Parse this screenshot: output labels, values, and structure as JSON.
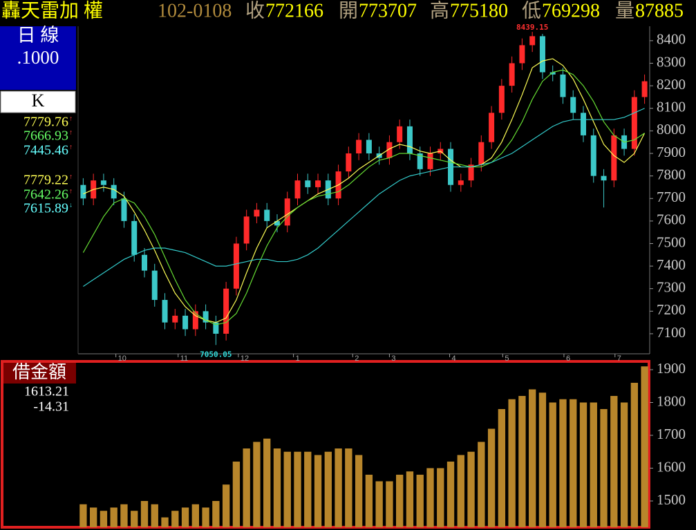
{
  "header": {
    "title": "轟天雷加 權",
    "code": "102-0108",
    "quotes": [
      {
        "label": "收",
        "value": 772166
      },
      {
        "label": "開",
        "value": 773707
      },
      {
        "label": "高",
        "value": 775180
      },
      {
        "label": "低",
        "value": 769298
      },
      {
        "label": "量",
        "value": 87885
      }
    ]
  },
  "sidebar": {
    "period": "日 線",
    "unit": ".1000",
    "indicator": "K",
    "readings": [
      {
        "value": 7779.76,
        "arrow": "↑",
        "color": "#ffff55"
      },
      {
        "value": 7666.93,
        "arrow": "↑",
        "color": "#66ff66"
      },
      {
        "value": 7445.46,
        "arrow": "↑",
        "color": "#66ffff"
      },
      {
        "value": 7779.22,
        "arrow": "↑",
        "color": "#ffff55"
      },
      {
        "value": 7642.26,
        "arrow": "↑",
        "color": "#66ff66"
      },
      {
        "value": 7615.89,
        "arrow": "↓",
        "color": "#66ffff"
      }
    ]
  },
  "chart_data": [
    {
      "type": "candlestick",
      "up_color": "#ff2a2a",
      "down_color": "#3cc8c8",
      "open": [
        7760,
        7700,
        7780,
        7760,
        7700,
        7600,
        7450,
        7380,
        7250,
        7150,
        7180,
        7120,
        7200,
        7150,
        7100,
        7300,
        7500,
        7620,
        7650,
        7600,
        7580,
        7700,
        7780,
        7750,
        7780,
        7700,
        7820,
        7900,
        7960,
        7900,
        7880,
        7950,
        8020,
        7900,
        7830,
        7900,
        7920,
        7760,
        7780,
        7850,
        7950,
        8080,
        8200,
        8300,
        8380,
        8420,
        8260,
        8250,
        8150,
        8080,
        7980,
        7800,
        7780,
        7980,
        7920,
        8150
      ],
      "high": [
        7790,
        7810,
        7810,
        7790,
        7730,
        7630,
        7480,
        7410,
        7280,
        7210,
        7210,
        7230,
        7230,
        7180,
        7330,
        7530,
        7650,
        7680,
        7680,
        7630,
        7730,
        7810,
        7810,
        7810,
        7810,
        7850,
        7930,
        7990,
        7990,
        7930,
        7980,
        8050,
        8050,
        7930,
        7930,
        7950,
        7950,
        7810,
        7880,
        7980,
        8110,
        8230,
        8330,
        8410,
        8439.15,
        8430,
        8290,
        8280,
        8180,
        8110,
        8010,
        7830,
        8010,
        8010,
        8180,
        8250
      ],
      "low": [
        7670,
        7670,
        7730,
        7670,
        7570,
        7420,
        7350,
        7220,
        7120,
        7120,
        7090,
        7090,
        7120,
        7050.05,
        7070,
        7270,
        7470,
        7590,
        7570,
        7550,
        7550,
        7670,
        7720,
        7720,
        7670,
        7670,
        7790,
        7870,
        7870,
        7850,
        7850,
        7920,
        7870,
        7800,
        7800,
        7870,
        7730,
        7730,
        7750,
        7820,
        7920,
        8050,
        8170,
        8270,
        8350,
        8230,
        8220,
        8120,
        8050,
        7950,
        7770,
        7660,
        7750,
        7890,
        7890,
        8120
      ],
      "close": [
        7700,
        7780,
        7760,
        7700,
        7600,
        7450,
        7380,
        7250,
        7150,
        7180,
        7120,
        7200,
        7150,
        7100,
        7300,
        7500,
        7620,
        7650,
        7600,
        7580,
        7700,
        7780,
        7750,
        7780,
        7700,
        7820,
        7900,
        7960,
        7900,
        7880,
        7950,
        8020,
        7900,
        7830,
        7900,
        7920,
        7760,
        7780,
        7850,
        7950,
        8080,
        8200,
        8300,
        8380,
        8420,
        8260,
        8250,
        8150,
        8080,
        7980,
        7800,
        7780,
        7980,
        7920,
        8150,
        8220
      ],
      "series": [
        {
          "color": "#ffff55",
          "values": [
            7720,
            7740,
            7750,
            7740,
            7710,
            7640,
            7560,
            7470,
            7370,
            7280,
            7220,
            7180,
            7160,
            7150,
            7170,
            7250,
            7370,
            7480,
            7570,
            7600,
            7630,
            7660,
            7690,
            7720,
            7740,
            7760,
            7790,
            7830,
            7860,
            7890,
            7920,
            7940,
            7930,
            7910,
            7900,
            7910,
            7870,
            7840,
            7840,
            7850,
            7880,
            7950,
            8050,
            8160,
            8280,
            8310,
            8320,
            8290,
            8230,
            8140,
            8040,
            7940,
            7890,
            7860,
            7900,
            7990
          ]
        },
        {
          "color": "#66dd33",
          "values": [
            7460,
            7540,
            7620,
            7680,
            7700,
            7680,
            7620,
            7540,
            7440,
            7340,
            7250,
            7190,
            7160,
            7140,
            7150,
            7190,
            7280,
            7390,
            7490,
            7570,
            7620,
            7660,
            7690,
            7710,
            7720,
            7730,
            7760,
            7800,
            7840,
            7870,
            7880,
            7900,
            7900,
            7890,
            7880,
            7870,
            7860,
            7850,
            7840,
            7840,
            7860,
            7900,
            7960,
            8040,
            8140,
            8220,
            8260,
            8270,
            8250,
            8200,
            8130,
            8040,
            7980,
            7950,
            7960,
            7990
          ]
        },
        {
          "color": "#33cccc",
          "values": [
            7310,
            7340,
            7370,
            7400,
            7430,
            7450,
            7470,
            7480,
            7480,
            7470,
            7460,
            7440,
            7420,
            7400,
            7400,
            7410,
            7420,
            7430,
            7430,
            7420,
            7420,
            7430,
            7450,
            7480,
            7520,
            7560,
            7600,
            7640,
            7680,
            7720,
            7750,
            7780,
            7800,
            7810,
            7820,
            7830,
            7840,
            7840,
            7840,
            7850,
            7860,
            7880,
            7900,
            7930,
            7960,
            7990,
            8020,
            8040,
            8050,
            8050,
            8050,
            8050,
            8050,
            8060,
            8080,
            8100
          ]
        }
      ],
      "ylim": [
        7011,
        8464
      ],
      "yticks": [
        7100,
        7200,
        7300,
        7400,
        7500,
        7600,
        7700,
        7800,
        7900,
        8000,
        8100,
        8200,
        8300,
        8400
      ],
      "xticks": [
        {
          "value": 3.2,
          "label": "10"
        },
        {
          "value": 9.3,
          "label": "11"
        },
        {
          "value": 15.2,
          "label": "12"
        },
        {
          "value": 20.6,
          "label": "1"
        },
        {
          "value": 26.4,
          "label": "2"
        },
        {
          "value": 30.0,
          "label": "3"
        },
        {
          "value": 35.9,
          "label": "4"
        },
        {
          "value": 41.1,
          "label": "5"
        },
        {
          "value": 47.1,
          "label": "6"
        },
        {
          "value": 52.1,
          "label": "7"
        }
      ],
      "annotations": [
        {
          "text": "8439.15",
          "x": 44,
          "y": 8439.15,
          "color": "#ff3030"
        },
        {
          "text": "7050.05",
          "x": 13,
          "y": 7050.05,
          "color": "#33dddd"
        }
      ]
    },
    {
      "type": "bar",
      "title": "借金額",
      "readouts": [
        1613.21,
        -14.31
      ],
      "color": "#b8862b",
      "values": [
        1490,
        1480,
        1470,
        1480,
        1490,
        1470,
        1500,
        1490,
        1450,
        1470,
        1480,
        1490,
        1480,
        1500,
        1550,
        1620,
        1660,
        1680,
        1690,
        1660,
        1650,
        1650,
        1650,
        1640,
        1650,
        1660,
        1660,
        1640,
        1580,
        1560,
        1560,
        1580,
        1590,
        1580,
        1600,
        1600,
        1620,
        1640,
        1650,
        1680,
        1720,
        1780,
        1810,
        1820,
        1840,
        1830,
        1800,
        1810,
        1810,
        1800,
        1800,
        1780,
        1820,
        1800,
        1860,
        1910
      ],
      "ylim": [
        1420,
        1921
      ],
      "yticks": [
        1500,
        1600,
        1700,
        1800,
        1900
      ]
    }
  ]
}
